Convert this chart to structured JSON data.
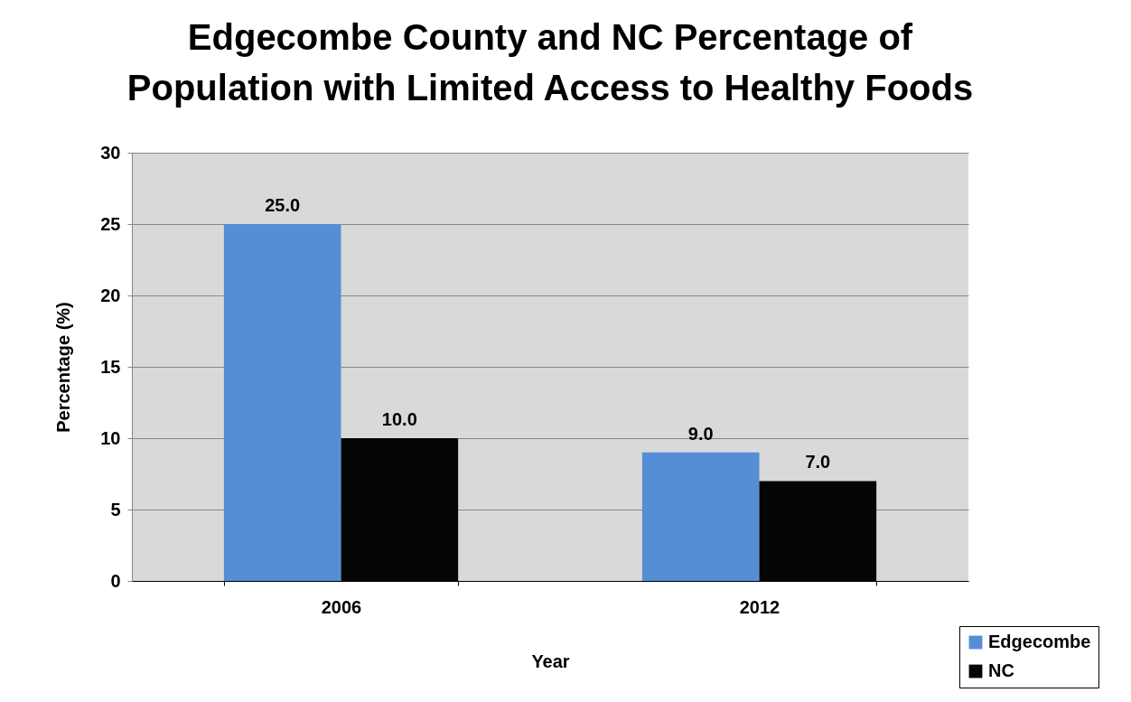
{
  "chart_data": {
    "type": "bar",
    "title": "Edgecombe County and NC Percentage of\nPopulation with Limited Access to Healthy Foods",
    "xlabel": "Year",
    "ylabel": "Percentage (%)",
    "categories": [
      "2006",
      "2012"
    ],
    "series": [
      {
        "name": "Edgecombe",
        "color": "#558ed5",
        "values": [
          25.0,
          9.0
        ],
        "value_labels": [
          "25.0",
          "9.0"
        ]
      },
      {
        "name": "NC",
        "color": "#050505",
        "values": [
          10.0,
          7.0
        ],
        "value_labels": [
          "10.0",
          "7.0"
        ]
      }
    ],
    "ylim": [
      0,
      30
    ],
    "yticks": [
      0,
      5,
      10,
      15,
      20,
      25,
      30
    ],
    "grid": "y",
    "legend": "bottom right"
  }
}
